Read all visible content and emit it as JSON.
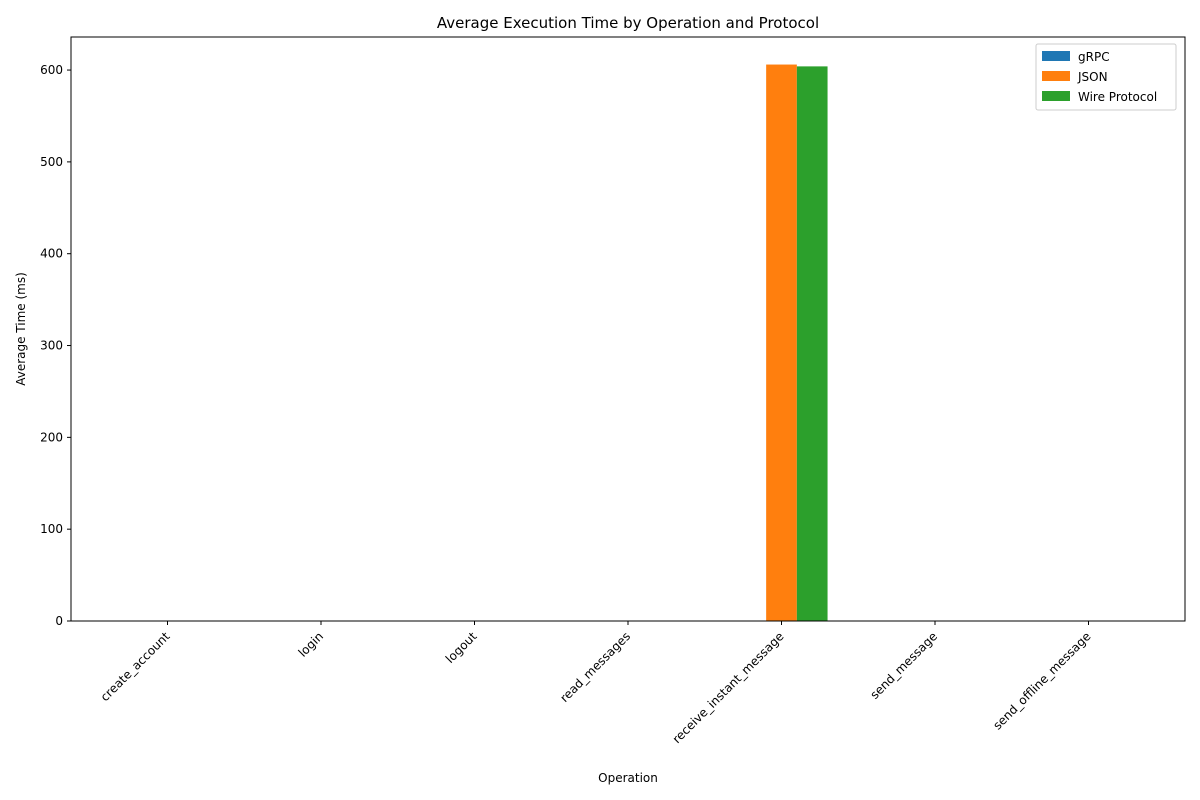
{
  "chart_data": {
    "type": "bar",
    "title": "Average Execution Time by Operation and Protocol",
    "xlabel": "Operation",
    "ylabel": "Average Time (ms)",
    "categories": [
      "create_account",
      "login",
      "logout",
      "read_messages",
      "receive_instant_message",
      "send_message",
      "send_offline_message"
    ],
    "series": [
      {
        "name": "gRPC",
        "color": "#1f77b4",
        "values": [
          0,
          0,
          0,
          0,
          0,
          0,
          0
        ]
      },
      {
        "name": "JSON",
        "color": "#ff7f0e",
        "values": [
          0,
          0,
          0,
          0,
          606,
          0,
          0
        ]
      },
      {
        "name": "Wire Protocol",
        "color": "#2ca02c",
        "values": [
          0,
          0,
          0,
          0,
          604,
          0,
          0
        ]
      }
    ],
    "ylim": [
      0,
      636
    ],
    "yticks": [
      0,
      100,
      200,
      300,
      400,
      500,
      600
    ],
    "grid": false,
    "legend_position": "top-right"
  }
}
